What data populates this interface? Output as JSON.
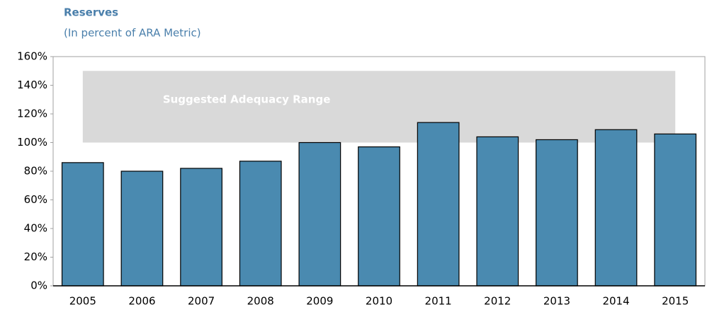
{
  "chart_data": {
    "type": "bar",
    "title": "Reserves",
    "subtitle": "(In percent of ARA Metric)",
    "categories": [
      "2005",
      "2006",
      "2007",
      "2008",
      "2009",
      "2010",
      "2011",
      "2012",
      "2013",
      "2014",
      "2015"
    ],
    "values": [
      86,
      80,
      82,
      87,
      100,
      97,
      114,
      104,
      102,
      109,
      106
    ],
    "color": "#4a8ab0",
    "ylim": [
      0,
      160
    ],
    "yticks": [
      {
        "value": 0,
        "label": "0%"
      },
      {
        "value": 20,
        "label": "20%"
      },
      {
        "value": 40,
        "label": "40%"
      },
      {
        "value": 60,
        "label": "60%"
      },
      {
        "value": 80,
        "label": "80%"
      },
      {
        "value": 100,
        "label": "100%"
      },
      {
        "value": 120,
        "label": "120%"
      },
      {
        "value": 140,
        "label": "140%"
      },
      {
        "value": 160,
        "label": "160%"
      }
    ],
    "band": {
      "label": "Suggested Adequacy Range",
      "from": 100,
      "to": 150,
      "color": "#d9d9d9"
    },
    "grid": false
  }
}
